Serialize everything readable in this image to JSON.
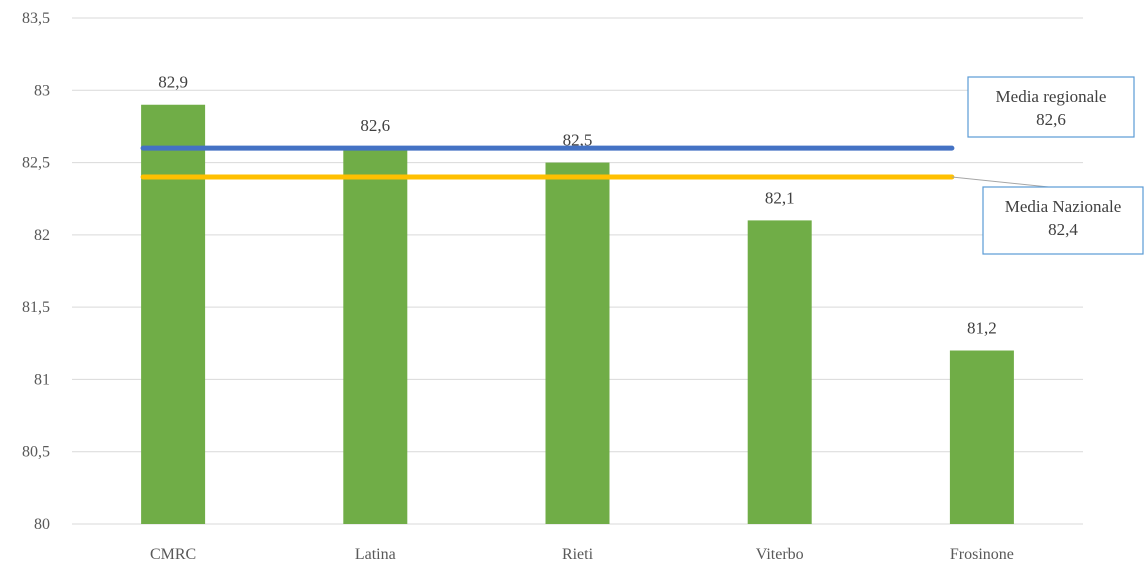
{
  "chart_data": {
    "type": "bar",
    "title": "",
    "xlabel": "",
    "ylabel": "",
    "categories": [
      "CMRC",
      "Latina",
      "Rieti",
      "Viterbo",
      "Frosinone"
    ],
    "values": [
      82.9,
      82.6,
      82.5,
      82.1,
      81.2
    ],
    "value_labels": [
      "82,9",
      "82,6",
      "82,5",
      "82,1",
      "81,2"
    ],
    "ylim": [
      80,
      83.5
    ],
    "yticks": [
      80,
      80.5,
      81,
      81.5,
      82,
      82.5,
      83,
      83.5
    ],
    "ytick_labels": [
      "80",
      "80,5",
      "81",
      "81,5",
      "82",
      "82,5",
      "83",
      "83,5"
    ],
    "grid": true,
    "bar_color": "#70ad47",
    "reference_lines": [
      {
        "value": 82.6,
        "color": "#4472c4",
        "callout_title": "Media regionale",
        "callout_value": "82,6"
      },
      {
        "value": 82.4,
        "color": "#ffc000",
        "callout_title": "Media Nazionale",
        "callout_value": "82,4"
      }
    ]
  }
}
